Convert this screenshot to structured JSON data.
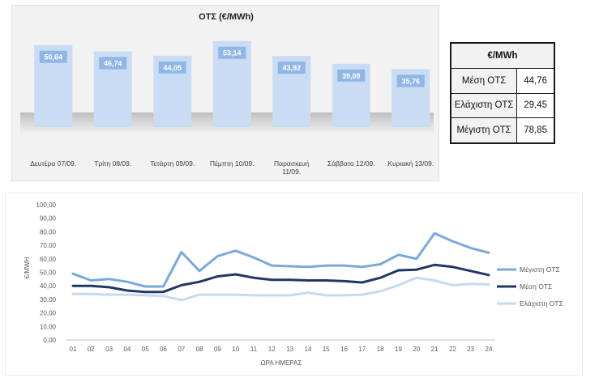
{
  "chart_data": [
    {
      "type": "bar",
      "title": "ΟΤΣ (€/MWh)",
      "categories": [
        "Δευτέρα 07/09.",
        "Τρίτη 08/09.",
        "Τετάρτη 09/09.",
        "Πέμπτη 10/09.",
        "Παρασκευή 11/09.",
        "Σάββατο 12/09.",
        "Κυριακή 13/09."
      ],
      "values": [
        50.64,
        46.74,
        44.05,
        53.14,
        43.92,
        39.09,
        35.76
      ],
      "value_labels": [
        "50,64",
        "46,74",
        "44,05",
        "53,14",
        "43,92",
        "39,09",
        "35,76"
      ],
      "ylim": [
        0,
        60
      ],
      "grid": false,
      "colors": {
        "bar": "#c9dcf3",
        "label_box": "#8fb6e6"
      }
    },
    {
      "type": "table",
      "header": "€/MWh",
      "rows": [
        {
          "label": "Μέση ΟΤΣ",
          "value": "44,76"
        },
        {
          "label": "Ελάχιστη ΟΤΣ",
          "value": "29,45"
        },
        {
          "label": "Μέγιστη ΟΤΣ",
          "value": "78,85"
        }
      ]
    },
    {
      "type": "line",
      "ylabel": "€/MWH",
      "xlabel": "ΩΡΑ ΗΜΕΡΑΣ",
      "x": [
        "01",
        "02",
        "03",
        "04",
        "05",
        "06",
        "07",
        "08",
        "09",
        "10",
        "11",
        "12",
        "13",
        "14",
        "15",
        "16",
        "17",
        "18",
        "19",
        "20",
        "21",
        "22",
        "23",
        "24"
      ],
      "ylim": [
        0,
        100
      ],
      "yticks": [
        "0,00",
        "10,00",
        "20,00",
        "30,00",
        "40,00",
        "50,00",
        "60,00",
        "70,00",
        "80,00",
        "90,00",
        "100,00"
      ],
      "legend_position": "right",
      "grid": false,
      "series": [
        {
          "name": "Μέγιστη ΟΤΣ",
          "color": "#7aa8dc",
          "values": [
            49,
            44,
            45,
            43,
            39.5,
            39.5,
            65,
            51,
            62,
            66,
            61,
            55,
            54.5,
            54,
            55,
            55,
            54,
            56,
            63,
            60,
            78.85,
            73,
            68,
            64.5
          ]
        },
        {
          "name": "Μέση ΟΤΣ",
          "color": "#1f3864",
          "values": [
            40,
            40,
            39,
            36.5,
            35.5,
            35.5,
            40.5,
            43,
            47,
            48.5,
            46,
            44.5,
            44.5,
            44,
            44,
            43.5,
            42.5,
            46,
            51.5,
            52,
            55.5,
            54,
            51,
            48
          ]
        },
        {
          "name": "Ελάχιστη ΟΤΣ",
          "color": "#c5daf2",
          "values": [
            34,
            34,
            33.5,
            33.5,
            33,
            32.5,
            29.45,
            33.5,
            33.5,
            33.5,
            33,
            33,
            33,
            35,
            33,
            33,
            33.5,
            36,
            40.5,
            46,
            44,
            40.5,
            41.5,
            41
          ]
        }
      ]
    }
  ]
}
